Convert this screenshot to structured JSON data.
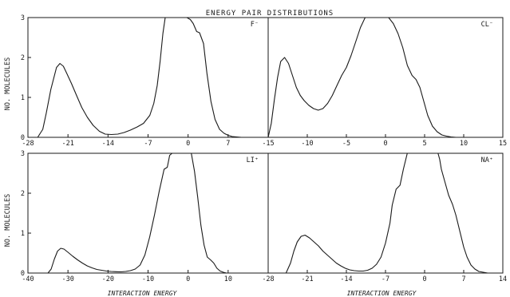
{
  "figure": {
    "title": "ENERGY PAIR DISTRIBUTIONS",
    "ylabel": "NO. MOLECULES",
    "xlabel": "INTERACTION ENERGY"
  },
  "chart_data": [
    {
      "type": "line",
      "ion": "F⁻",
      "xlim": [
        -28,
        14
      ],
      "ylim": [
        0,
        3
      ],
      "xticks": [
        "-28",
        "-21",
        "-14",
        "-7",
        "0",
        "7"
      ],
      "yticks": [
        "0",
        "1",
        "2",
        "3"
      ],
      "x": [
        -26.3,
        -25.4,
        -24.8,
        -24.0,
        -23.0,
        -22.4,
        -21.8,
        -21.2,
        -20.4,
        -19.5,
        -18.6,
        -17.6,
        -16.6,
        -15.5,
        -14.5,
        -13.4,
        -12.3,
        -11.2,
        -10.1,
        -8.9,
        -7.8,
        -6.7,
        -6.0,
        -5.4,
        -4.9,
        -4.4,
        -4.0,
        -3.3,
        -2.5,
        -0.2,
        0.4,
        0.9,
        1.5,
        2.0,
        2.7,
        3.3,
        4.0,
        4.7,
        5.5,
        6.3,
        7.0,
        7.7,
        8.5,
        9.3,
        10.1,
        11.0
      ],
      "y": [
        0.0,
        0.2,
        0.6,
        1.2,
        1.75,
        1.85,
        1.78,
        1.6,
        1.35,
        1.05,
        0.75,
        0.5,
        0.3,
        0.15,
        0.08,
        0.07,
        0.08,
        0.12,
        0.18,
        0.26,
        0.35,
        0.55,
        0.85,
        1.3,
        1.9,
        2.6,
        3.0,
        3.0,
        3.0,
        3.0,
        2.95,
        2.85,
        2.65,
        2.62,
        2.35,
        1.6,
        0.9,
        0.45,
        0.2,
        0.1,
        0.05,
        0.02,
        0.01,
        0.0,
        0.0,
        0.0
      ]
    },
    {
      "type": "line",
      "ion": "CL⁻",
      "xlim": [
        -15,
        15
      ],
      "ylim": [
        0,
        3
      ],
      "xticks": [
        "-15",
        "-10",
        "-5",
        "0",
        "5",
        "10",
        "15"
      ],
      "yticks": [],
      "x": [
        -15.0,
        -14.6,
        -14.2,
        -13.8,
        -13.4,
        -12.9,
        -12.4,
        -11.9,
        -11.4,
        -10.9,
        -10.4,
        -9.8,
        -9.2,
        -8.6,
        -8.0,
        -7.4,
        -6.8,
        -6.2,
        -5.6,
        -5.0,
        -4.4,
        -3.8,
        -3.2,
        -2.6,
        -1.3,
        0.4,
        1.0,
        1.6,
        2.2,
        2.8,
        3.4,
        3.9,
        4.4,
        4.9,
        5.4,
        6.0,
        6.6,
        7.2,
        7.8,
        8.4,
        9.0
      ],
      "y": [
        0.0,
        0.35,
        0.95,
        1.5,
        1.9,
        2.0,
        1.85,
        1.55,
        1.25,
        1.05,
        0.92,
        0.8,
        0.72,
        0.68,
        0.72,
        0.85,
        1.05,
        1.3,
        1.55,
        1.75,
        2.05,
        2.4,
        2.75,
        3.0,
        3.0,
        3.0,
        2.85,
        2.6,
        2.25,
        1.8,
        1.55,
        1.45,
        1.25,
        0.9,
        0.55,
        0.28,
        0.14,
        0.06,
        0.03,
        0.01,
        0.0
      ]
    },
    {
      "type": "line",
      "ion": "LI⁺",
      "xlim": [
        -40,
        20
      ],
      "ylim": [
        0,
        3
      ],
      "xticks": [
        "-40",
        "-30",
        "-20",
        "-10",
        "0",
        "10"
      ],
      "yticks": [
        "0",
        "1",
        "2",
        "3"
      ],
      "x": [
        -35.0,
        -34.2,
        -33.4,
        -32.6,
        -31.8,
        -31.0,
        -30.0,
        -28.8,
        -27.6,
        -26.4,
        -25.2,
        -24.0,
        -22.8,
        -21.6,
        -20.4,
        -19.2,
        -18.0,
        -16.8,
        -15.6,
        -14.4,
        -13.2,
        -12.0,
        -10.8,
        -9.6,
        -8.4,
        -7.2,
        -6.0,
        -5.2,
        -4.6,
        -4.0,
        -3.2,
        -2.0,
        -1.2,
        0.8,
        1.6,
        2.4,
        3.2,
        4.0,
        4.8,
        5.6,
        6.4,
        7.2,
        8.0,
        8.8,
        9.6,
        10.4
      ],
      "y": [
        0.0,
        0.1,
        0.35,
        0.55,
        0.62,
        0.6,
        0.52,
        0.42,
        0.33,
        0.25,
        0.18,
        0.13,
        0.09,
        0.07,
        0.05,
        0.04,
        0.035,
        0.03,
        0.04,
        0.06,
        0.1,
        0.2,
        0.45,
        0.9,
        1.45,
        2.05,
        2.6,
        2.65,
        2.95,
        3.0,
        3.0,
        3.0,
        3.0,
        3.0,
        2.55,
        1.9,
        1.2,
        0.7,
        0.4,
        0.33,
        0.25,
        0.12,
        0.05,
        0.02,
        0.0,
        0.0
      ]
    },
    {
      "type": "line",
      "ion": "NA⁺",
      "xlim": [
        -28,
        14
      ],
      "ylim": [
        0,
        3
      ],
      "xticks": [
        "-28",
        "-21",
        "-14",
        "-7",
        "0",
        "7",
        "14"
      ],
      "yticks": [],
      "x": [
        -24.8,
        -24.0,
        -23.4,
        -22.8,
        -22.1,
        -21.4,
        -20.6,
        -19.8,
        -19.0,
        -18.2,
        -17.4,
        -16.6,
        -15.8,
        -15.0,
        -14.2,
        -13.4,
        -12.6,
        -11.8,
        -11.0,
        -10.2,
        -9.4,
        -8.6,
        -7.8,
        -7.0,
        -6.2,
        -5.8,
        -5.1,
        -4.4,
        -3.8,
        -3.1,
        2.4,
        2.7,
        3.0,
        3.6,
        4.3,
        5.0,
        5.6,
        6.3,
        7.0,
        7.6,
        8.3,
        9.0,
        9.7,
        10.5,
        11.3,
        12.1
      ],
      "y": [
        0.0,
        0.25,
        0.55,
        0.78,
        0.92,
        0.95,
        0.88,
        0.78,
        0.68,
        0.55,
        0.45,
        0.35,
        0.25,
        0.18,
        0.12,
        0.08,
        0.06,
        0.05,
        0.05,
        0.07,
        0.12,
        0.22,
        0.4,
        0.75,
        1.25,
        1.7,
        2.1,
        2.2,
        2.6,
        3.0,
        3.0,
        2.85,
        2.6,
        2.3,
        1.95,
        1.72,
        1.45,
        1.05,
        0.65,
        0.4,
        0.2,
        0.1,
        0.04,
        0.02,
        0.0,
        0.0
      ]
    }
  ]
}
